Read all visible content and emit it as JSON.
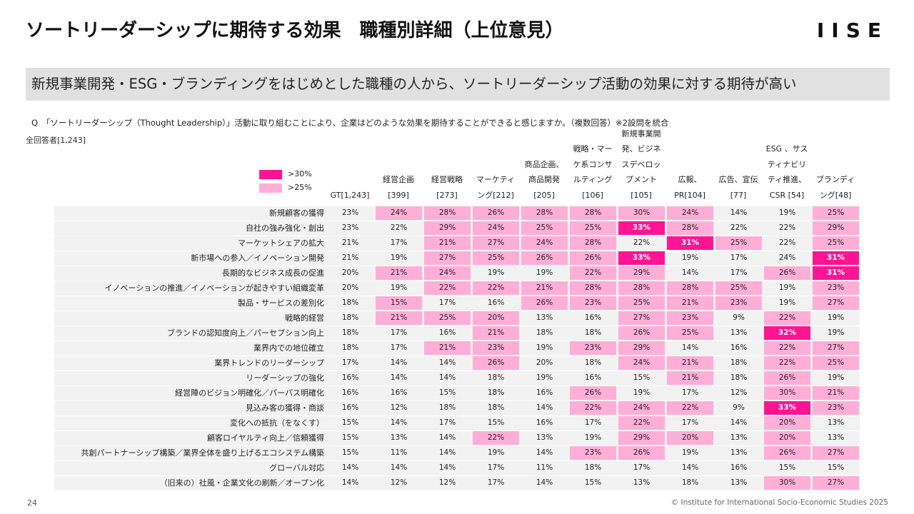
{
  "title": "ソートリーダーシップに期待する効果　職種別詳細（上位意見）",
  "logo": "IISE",
  "banner": "新規事業開発・ESG・ブランディングをはじめとした職種の人から、ソートリーダーシップ活動の効果に対する期待が高い",
  "question": "Q　「ソートリーダーシップ（Thought Leadership）」活動に取り組むことにより、企業はどのような効果を期待することができると感じますか。（複数回答）※2設問を統合",
  "base_label": "全回答者[1,243]",
  "legend": [
    {
      "label": ">30%",
      "color": "#ff1493"
    },
    {
      "label": ">25%",
      "color": "#ffaed7"
    }
  ],
  "colors": {
    "high": "#ff1493",
    "mid": "#ffaed7",
    "band": "#f2f2f2"
  },
  "page_number": "24",
  "copyright": "© Institute for International Socio-Economic Studies 2025",
  "chart_data": {
    "type": "table",
    "columns": [
      "GT[1,243]",
      "経営企画\n[399]",
      "経営戦略\n[273]",
      "マーケティ\nング[212]",
      "商品企画、\n商品開発\n[205]",
      "戦略・マー\nケ系コンサ\nルティング\n[106]",
      "新規事業開\n発、ビジネ\nスデベロッ\nプメント\n[105]",
      "広報、\nPR[104]",
      "広告、宣伝\n[77]",
      "ESG 、サス\nティナビリ\nティ推進、\nCSR [54]",
      "ブランディ\nング[48]"
    ],
    "rows": [
      {
        "label": "新規顧客の獲得",
        "values": [
          23,
          24,
          28,
          26,
          28,
          28,
          30,
          24,
          14,
          19,
          25
        ]
      },
      {
        "label": "自社の強み強化・創出",
        "values": [
          23,
          22,
          29,
          24,
          25,
          25,
          33,
          28,
          22,
          22,
          29
        ]
      },
      {
        "label": "マーケットシェアの拡大",
        "values": [
          21,
          17,
          21,
          27,
          24,
          28,
          22,
          31,
          25,
          22,
          25
        ]
      },
      {
        "label": "新市場への参入／イノベーション開発",
        "values": [
          21,
          19,
          27,
          25,
          26,
          26,
          33,
          19,
          17,
          24,
          31
        ]
      },
      {
        "label": "長期的なビジネス成長の促進",
        "values": [
          20,
          21,
          24,
          19,
          19,
          22,
          29,
          14,
          17,
          26,
          31
        ]
      },
      {
        "label": "イノベーションの推進／イノベーションが起きやすい組織変革",
        "values": [
          20,
          19,
          22,
          22,
          21,
          28,
          28,
          28,
          25,
          19,
          23
        ]
      },
      {
        "label": "製品・サービスの差別化",
        "values": [
          18,
          15,
          17,
          16,
          26,
          23,
          25,
          21,
          23,
          19,
          27
        ]
      },
      {
        "label": "戦略的経営",
        "values": [
          18,
          21,
          25,
          20,
          13,
          16,
          27,
          23,
          9,
          22,
          19
        ]
      },
      {
        "label": "ブランドの認知度向上／パーセプション向上",
        "values": [
          18,
          17,
          16,
          21,
          18,
          18,
          26,
          25,
          13,
          32,
          19
        ]
      },
      {
        "label": "業界内での地位確立",
        "values": [
          18,
          17,
          21,
          23,
          19,
          23,
          29,
          14,
          16,
          22,
          27
        ]
      },
      {
        "label": "業界トレンドのリーダーシップ",
        "values": [
          17,
          14,
          14,
          26,
          20,
          18,
          24,
          21,
          18,
          22,
          25
        ]
      },
      {
        "label": "リーダーシップの強化",
        "values": [
          16,
          14,
          14,
          18,
          19,
          16,
          15,
          21,
          18,
          26,
          19
        ]
      },
      {
        "label": "経営陣のビジョン明確化／パーパス明確化",
        "values": [
          16,
          16,
          15,
          18,
          16,
          26,
          19,
          17,
          12,
          30,
          21
        ]
      },
      {
        "label": "見込み客の獲得・商談",
        "values": [
          16,
          12,
          18,
          18,
          14,
          22,
          24,
          22,
          9,
          33,
          23
        ]
      },
      {
        "label": "変化への抵抗（をなくす）",
        "values": [
          15,
          14,
          17,
          15,
          16,
          17,
          22,
          17,
          14,
          20,
          13
        ]
      },
      {
        "label": "顧客ロイヤルティ向上／信頼獲得",
        "values": [
          15,
          13,
          14,
          22,
          13,
          19,
          29,
          20,
          13,
          20,
          13
        ]
      },
      {
        "label": "共創パートナーシップ構築／業界全体を盛り上げるエコシステム構築",
        "values": [
          15,
          11,
          14,
          19,
          14,
          23,
          26,
          19,
          13,
          26,
          27
        ]
      },
      {
        "label": "グローバル対応",
        "values": [
          14,
          14,
          14,
          17,
          11,
          18,
          17,
          14,
          16,
          15,
          15
        ]
      },
      {
        "label": "（旧来の）社風・企業文化の刷新／オープン化",
        "values": [
          14,
          12,
          12,
          17,
          14,
          15,
          13,
          18,
          13,
          30,
          27
        ]
      }
    ],
    "highlighted": [
      [
        0,
        1
      ],
      [
        0,
        2
      ],
      [
        0,
        3
      ],
      [
        0,
        4
      ],
      [
        0,
        5
      ],
      [
        0,
        6
      ],
      [
        0,
        7
      ],
      [
        0,
        10
      ],
      [
        1,
        2
      ],
      [
        1,
        3
      ],
      [
        1,
        4
      ],
      [
        1,
        5
      ],
      [
        1,
        6
      ],
      [
        1,
        7
      ],
      [
        1,
        10
      ],
      [
        2,
        2
      ],
      [
        2,
        3
      ],
      [
        2,
        4
      ],
      [
        2,
        5
      ],
      [
        2,
        7
      ],
      [
        2,
        8
      ],
      [
        2,
        10
      ],
      [
        3,
        2
      ],
      [
        3,
        3
      ],
      [
        3,
        4
      ],
      [
        3,
        5
      ],
      [
        3,
        6
      ],
      [
        3,
        10
      ],
      [
        4,
        1
      ],
      [
        4,
        2
      ],
      [
        4,
        5
      ],
      [
        4,
        6
      ],
      [
        4,
        9
      ],
      [
        4,
        10
      ],
      [
        5,
        2
      ],
      [
        5,
        3
      ],
      [
        5,
        4
      ],
      [
        5,
        5
      ],
      [
        5,
        6
      ],
      [
        5,
        7
      ],
      [
        5,
        8
      ],
      [
        5,
        10
      ],
      [
        6,
        1
      ],
      [
        6,
        4
      ],
      [
        6,
        5
      ],
      [
        6,
        6
      ],
      [
        6,
        7
      ],
      [
        6,
        8
      ],
      [
        6,
        10
      ],
      [
        7,
        1
      ],
      [
        7,
        2
      ],
      [
        7,
        3
      ],
      [
        7,
        6
      ],
      [
        7,
        7
      ],
      [
        7,
        9
      ],
      [
        8,
        3
      ],
      [
        8,
        6
      ],
      [
        8,
        7
      ],
      [
        8,
        9
      ],
      [
        9,
        2
      ],
      [
        9,
        3
      ],
      [
        9,
        5
      ],
      [
        9,
        6
      ],
      [
        9,
        9
      ],
      [
        9,
        10
      ],
      [
        10,
        3
      ],
      [
        10,
        6
      ],
      [
        10,
        7
      ],
      [
        10,
        9
      ],
      [
        10,
        10
      ],
      [
        11,
        7
      ],
      [
        11,
        9
      ],
      [
        12,
        5
      ],
      [
        12,
        9
      ],
      [
        12,
        10
      ],
      [
        13,
        5
      ],
      [
        13,
        6
      ],
      [
        13,
        7
      ],
      [
        13,
        9
      ],
      [
        13,
        10
      ],
      [
        14,
        6
      ],
      [
        14,
        9
      ],
      [
        15,
        3
      ],
      [
        15,
        6
      ],
      [
        15,
        7
      ],
      [
        15,
        9
      ],
      [
        16,
        5
      ],
      [
        16,
        6
      ],
      [
        16,
        9
      ],
      [
        16,
        10
      ],
      [
        18,
        9
      ],
      [
        18,
        10
      ]
    ],
    "strong": [
      [
        1,
        6
      ],
      [
        2,
        7
      ],
      [
        3,
        6
      ],
      [
        3,
        10
      ],
      [
        4,
        10
      ],
      [
        8,
        9
      ],
      [
        13,
        9
      ]
    ],
    "unit": "%"
  }
}
